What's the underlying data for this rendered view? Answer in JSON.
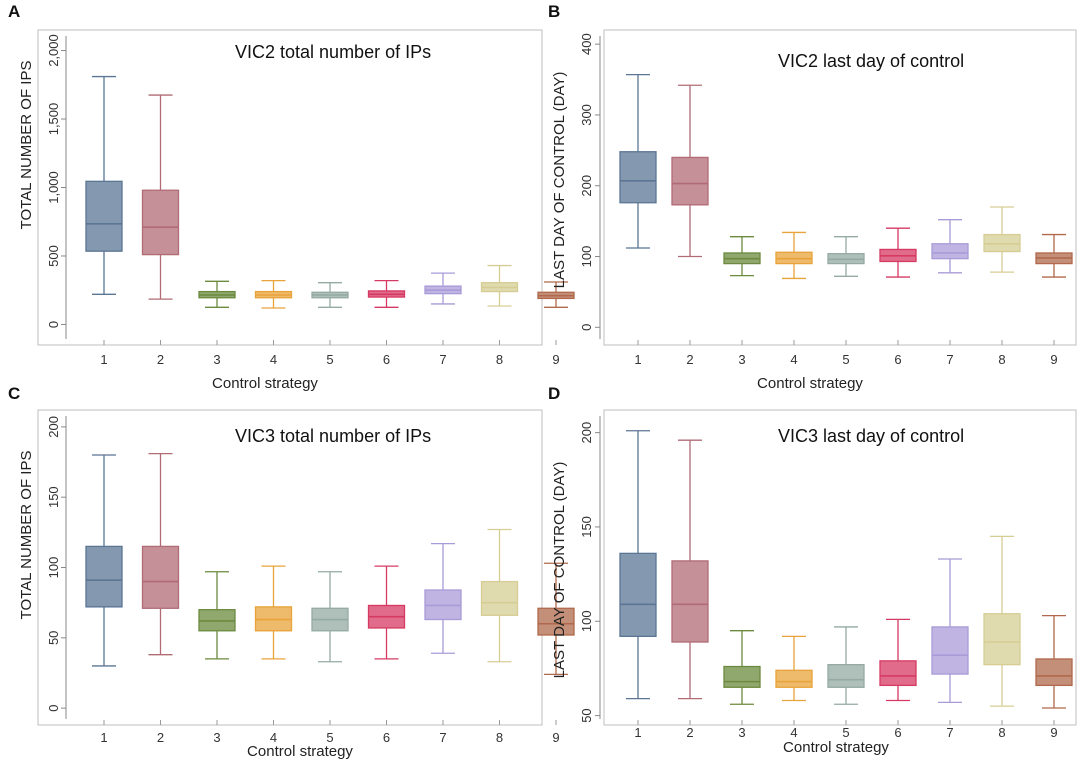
{
  "colors": [
    "#5b7594",
    "#b16b75",
    "#6b8a3e",
    "#e8a33a",
    "#94aaa3",
    "#d63a63",
    "#a99bd8",
    "#d6cd94",
    "#b0694c"
  ],
  "chart_data": [
    {
      "panel": "A",
      "type": "box",
      "title": "VIC2 total number of IPs",
      "xlabel": "Control strategy",
      "ylabel": "TOTAL NUMBER OF IPS",
      "ylim": [
        -150,
        2150
      ],
      "yticks": [
        0,
        500,
        1000,
        1500,
        2000
      ],
      "ytick_labels": [
        "0",
        "500",
        "1,000",
        "1,500",
        "2,000"
      ],
      "categories": [
        "1",
        "2",
        "3",
        "4",
        "5",
        "6",
        "7",
        "8",
        "9"
      ],
      "boxes": [
        {
          "min": 220,
          "q1": 535,
          "median": 735,
          "q3": 1045,
          "max": 1810
        },
        {
          "min": 185,
          "q1": 510,
          "median": 710,
          "q3": 980,
          "max": 1675
        },
        {
          "min": 125,
          "q1": 195,
          "median": 215,
          "q3": 240,
          "max": 315
        },
        {
          "min": 120,
          "q1": 195,
          "median": 215,
          "q3": 240,
          "max": 320
        },
        {
          "min": 125,
          "q1": 195,
          "median": 215,
          "q3": 235,
          "max": 305
        },
        {
          "min": 125,
          "q1": 200,
          "median": 220,
          "q3": 245,
          "max": 320
        },
        {
          "min": 150,
          "q1": 225,
          "median": 250,
          "q3": 280,
          "max": 375
        },
        {
          "min": 135,
          "q1": 240,
          "median": 270,
          "q3": 305,
          "max": 430
        },
        {
          "min": 125,
          "q1": 190,
          "median": 210,
          "q3": 235,
          "max": 310
        }
      ]
    },
    {
      "panel": "B",
      "type": "box",
      "title": "VIC2 last day of control",
      "xlabel": "Control strategy",
      "ylabel": "LAST DAY OF CONTROL (DAY)",
      "ylim": [
        -25,
        420
      ],
      "yticks": [
        0,
        100,
        200,
        300,
        400
      ],
      "ytick_labels": [
        "0",
        "100",
        "200",
        "300",
        "400"
      ],
      "categories": [
        "1",
        "2",
        "3",
        "4",
        "5",
        "6",
        "7",
        "8",
        "9"
      ],
      "boxes": [
        {
          "min": 112,
          "q1": 176,
          "median": 207,
          "q3": 248,
          "max": 357
        },
        {
          "min": 100,
          "q1": 173,
          "median": 203,
          "q3": 240,
          "max": 342
        },
        {
          "min": 73,
          "q1": 90,
          "median": 97,
          "q3": 105,
          "max": 128
        },
        {
          "min": 69,
          "q1": 90,
          "median": 97,
          "q3": 106,
          "max": 134
        },
        {
          "min": 72,
          "q1": 90,
          "median": 96,
          "q3": 104,
          "max": 128
        },
        {
          "min": 71,
          "q1": 93,
          "median": 101,
          "q3": 110,
          "max": 140
        },
        {
          "min": 77,
          "q1": 97,
          "median": 105,
          "q3": 118,
          "max": 152
        },
        {
          "min": 78,
          "q1": 107,
          "median": 118,
          "q3": 131,
          "max": 170
        },
        {
          "min": 71,
          "q1": 90,
          "median": 98,
          "q3": 105,
          "max": 131
        }
      ]
    },
    {
      "panel": "C",
      "type": "box",
      "title": "VIC3 total number of IPs",
      "xlabel": "Control strategy",
      "ylabel": "TOTAL NUMBER OF IPS",
      "ylim": [
        -12,
        212
      ],
      "yticks": [
        0,
        50,
        100,
        150,
        200
      ],
      "ytick_labels": [
        "0",
        "50",
        "100",
        "150",
        "200"
      ],
      "categories": [
        "1",
        "2",
        "3",
        "4",
        "5",
        "6",
        "7",
        "8",
        "9"
      ],
      "boxes": [
        {
          "min": 30,
          "q1": 72,
          "median": 91,
          "q3": 115,
          "max": 180
        },
        {
          "min": 38,
          "q1": 71,
          "median": 90,
          "q3": 115,
          "max": 181
        },
        {
          "min": 35,
          "q1": 55,
          "median": 62,
          "q3": 70,
          "max": 97
        },
        {
          "min": 35,
          "q1": 55,
          "median": 63,
          "q3": 72,
          "max": 101
        },
        {
          "min": 33,
          "q1": 55,
          "median": 63,
          "q3": 71,
          "max": 97
        },
        {
          "min": 35,
          "q1": 57,
          "median": 65,
          "q3": 73,
          "max": 101
        },
        {
          "min": 39,
          "q1": 63,
          "median": 73,
          "q3": 84,
          "max": 117
        },
        {
          "min": 33,
          "q1": 66,
          "median": 75,
          "q3": 90,
          "max": 127
        },
        {
          "min": 24,
          "q1": 52,
          "median": 60,
          "q3": 71,
          "max": 103
        }
      ]
    },
    {
      "panel": "D",
      "type": "box",
      "title": "VIC3 last day of control",
      "xlabel": "Control strategy",
      "ylabel": "LAST DAY OF CONTROL (DAY)",
      "ylim": [
        45,
        212
      ],
      "yticks": [
        50,
        100,
        150,
        200
      ],
      "ytick_labels": [
        "50",
        "100",
        "150",
        "200"
      ],
      "categories": [
        "1",
        "2",
        "3",
        "4",
        "5",
        "6",
        "7",
        "8",
        "9"
      ],
      "boxes": [
        {
          "min": 59,
          "q1": 92,
          "median": 109,
          "q3": 136,
          "max": 201
        },
        {
          "min": 59,
          "q1": 89,
          "median": 109,
          "q3": 132,
          "max": 196
        },
        {
          "min": 56,
          "q1": 65,
          "median": 68,
          "q3": 76,
          "max": 95
        },
        {
          "min": 58,
          "q1": 65,
          "median": 68,
          "q3": 74,
          "max": 92
        },
        {
          "min": 56,
          "q1": 65,
          "median": 69,
          "q3": 77,
          "max": 97
        },
        {
          "min": 58,
          "q1": 66,
          "median": 71,
          "q3": 79,
          "max": 101
        },
        {
          "min": 57,
          "q1": 72,
          "median": 82,
          "q3": 97,
          "max": 133
        },
        {
          "min": 55,
          "q1": 77,
          "median": 89,
          "q3": 104,
          "max": 145
        },
        {
          "min": 54,
          "q1": 66,
          "median": 71,
          "q3": 80,
          "max": 103
        }
      ]
    }
  ]
}
